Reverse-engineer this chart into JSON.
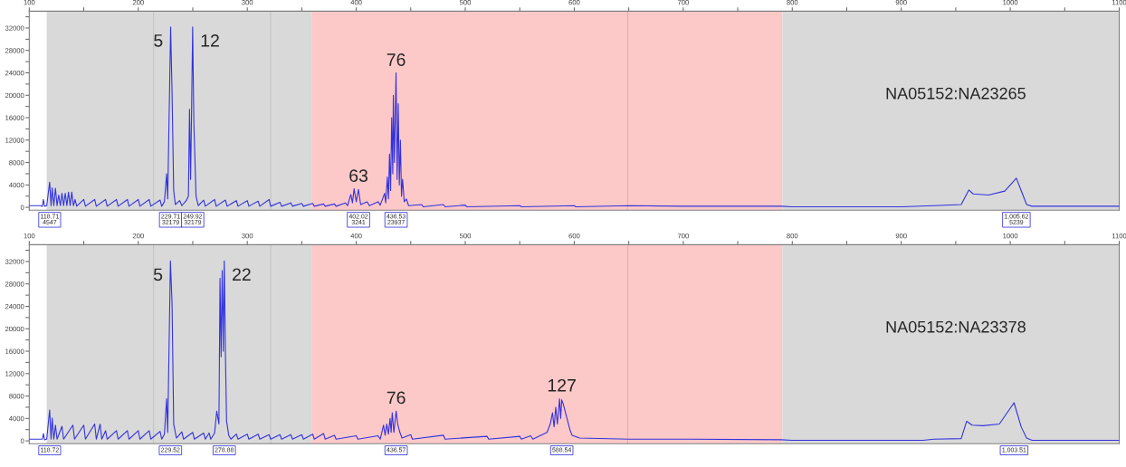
{
  "chart_data": [
    {
      "type": "line",
      "xlim": [
        100,
        1100
      ],
      "ylim": [
        -500,
        35000
      ],
      "xticks": [
        100,
        {
          "value": 150,
          "label": null
        },
        200,
        {
          "value": 250,
          "label": null
        },
        300,
        {
          "value": 350,
          "label": null
        },
        400,
        {
          "value": 450,
          "label": null
        },
        500,
        {
          "value": 550,
          "label": null
        },
        600,
        {
          "value": 650,
          "label": null
        },
        700,
        {
          "value": 750,
          "label": null
        },
        800,
        {
          "value": 850,
          "label": null
        },
        900,
        {
          "value": 950,
          "label": null
        },
        1000,
        {
          "value": 1050,
          "label": null
        },
        1100
      ],
      "yticks": [
        0,
        {
          "value": 2000,
          "label": null
        },
        4000,
        {
          "value": 6000,
          "label": null
        },
        8000,
        {
          "value": 10000,
          "label": null
        },
        12000,
        {
          "value": 14000,
          "label": null
        },
        16000,
        {
          "value": 18000,
          "label": null
        },
        20000,
        {
          "value": 22000,
          "label": null
        },
        24000,
        {
          "value": 26000,
          "label": null
        },
        28000,
        {
          "value": 30000,
          "label": null
        },
        32000,
        {
          "value": 34000,
          "label": null
        }
      ],
      "grid": false,
      "bands": [
        {
          "axis": "x",
          "from": 116,
          "to": 359,
          "color": "#d9d9d9"
        },
        {
          "axis": "x",
          "from": 359,
          "to": 791,
          "color": "#fdc8c8"
        },
        {
          "axis": "x",
          "from": 791,
          "to": 1100,
          "color": "#d9d9d9"
        }
      ],
      "ref_lines": [
        {
          "axis": "x",
          "value": 214,
          "color": "#c4c4c4"
        },
        {
          "axis": "x",
          "value": 321.5,
          "color": "#c4c4c4"
        },
        {
          "axis": "x",
          "value": 649,
          "color": "#f4a8a8"
        }
      ],
      "series": [
        {
          "color": "#3333dd",
          "x": [
            100,
            110,
            112,
            113,
            114,
            116,
            118.7,
            120,
            121,
            122.5,
            124,
            125.5,
            127,
            128.5,
            130,
            131.5,
            133,
            134.5,
            136,
            137.5,
            139,
            140.5,
            142,
            143.5,
            150,
            151.5,
            160,
            161.5,
            170,
            171.5,
            180,
            181.5,
            190,
            191.5,
            200,
            201.5,
            210,
            211.5,
            220,
            221.5,
            224,
            226,
            227,
            229.7,
            231,
            232.5,
            234,
            238,
            240,
            244,
            246,
            247,
            248,
            249,
            249.9,
            251,
            253,
            255,
            260,
            261.5,
            270,
            271.5,
            280,
            281.5,
            290,
            291.5,
            300,
            301.5,
            310,
            311.5,
            320,
            321.5,
            330,
            331.5,
            340,
            341.5,
            350,
            351.5,
            360,
            361.5,
            370,
            371.5,
            380,
            381.5,
            390,
            392,
            395,
            396.5,
            398,
            400,
            402,
            404,
            410,
            412,
            420,
            422,
            426,
            427,
            428.5,
            429.5,
            430.5,
            431.5,
            432.5,
            433.5,
            434,
            435,
            436.5,
            437.5,
            438.5,
            439.5,
            440.5,
            441.5,
            442.5,
            444,
            446,
            448,
            460,
            461.5,
            480,
            481.5,
            500,
            501.5,
            550,
            551.5,
            600,
            601.5,
            650,
            700,
            790,
            800,
            900,
            930,
            955,
            962,
            966,
            980,
            995,
            1005.6,
            1010,
            1015,
            1020,
            1100
          ],
          "values": [
            300,
            300,
            200,
            1400,
            200,
            300,
            4500,
            300,
            3500,
            300,
            3400,
            300,
            2200,
            300,
            2500,
            300,
            2500,
            300,
            2700,
            300,
            2700,
            300,
            1400,
            200,
            1400,
            200,
            1400,
            200,
            1400,
            200,
            1400,
            200,
            1400,
            200,
            1400,
            200,
            1400,
            200,
            1300,
            200,
            1000,
            6000,
            1500,
            32200,
            20500,
            3000,
            500,
            1200,
            300,
            1200,
            2000,
            17500,
            5000,
            18500,
            32200,
            15000,
            2000,
            300,
            1300,
            200,
            1400,
            200,
            1300,
            200,
            1200,
            200,
            1200,
            200,
            1100,
            200,
            1400,
            200,
            900,
            200,
            800,
            200,
            700,
            200,
            700,
            200,
            600,
            200,
            600,
            200,
            800,
            300,
            2300,
            800,
            3300,
            1000,
            3200,
            500,
            1000,
            300,
            1000,
            400,
            2500,
            800,
            5400,
            1500,
            9500,
            3000,
            16000,
            6000,
            20000,
            8000,
            24000,
            5000,
            18500,
            4000,
            12000,
            2000,
            5000,
            1000,
            1500,
            300,
            500,
            100,
            500,
            100,
            400,
            100,
            300,
            100,
            300,
            100,
            300,
            200,
            200,
            100,
            100,
            300,
            500,
            3100,
            2400,
            2200,
            2900,
            5200,
            3000,
            500,
            200,
            200
          ]
        }
      ],
      "annotations": [
        {
          "text": "5",
          "x": 229.71,
          "y": 32179
        },
        {
          "text": "12",
          "x": 249.92,
          "y": 32179
        },
        {
          "text": "63",
          "x": 402.02,
          "y": 3241
        },
        {
          "text": "76",
          "x": 436.53,
          "y": 23937
        },
        "NA05152:NA23265",
        {
          "text": "118.71\n4547",
          "x": 118.71
        },
        {
          "text": "229.71\n32179",
          "x": 229.71
        },
        {
          "text": "249.92\n32179",
          "x": 249.92
        },
        {
          "text": "402.02\n3241",
          "x": 402.02
        },
        {
          "text": "436.53\n23937",
          "x": 436.53
        },
        {
          "text": "1,005.62\n5239",
          "x": 1005.62
        }
      ]
    },
    {
      "type": "line",
      "xlim": [
        100,
        1100
      ],
      "ylim": [
        -500,
        35000
      ],
      "xticks": [
        100,
        {
          "value": 150,
          "label": null
        },
        200,
        {
          "value": 250,
          "label": null
        },
        300,
        {
          "value": 350,
          "label": null
        },
        400,
        {
          "value": 450,
          "label": null
        },
        500,
        {
          "value": 550,
          "label": null
        },
        600,
        {
          "value": 650,
          "label": null
        },
        700,
        {
          "value": 750,
          "label": null
        },
        800,
        {
          "value": 850,
          "label": null
        },
        900,
        {
          "value": 950,
          "label": null
        },
        1000,
        {
          "value": 1050,
          "label": null
        },
        1100
      ],
      "yticks": [
        0,
        {
          "value": 2000,
          "label": null
        },
        4000,
        {
          "value": 6000,
          "label": null
        },
        8000,
        {
          "value": 10000,
          "label": null
        },
        12000,
        {
          "value": 14000,
          "label": null
        },
        16000,
        {
          "value": 18000,
          "label": null
        },
        20000,
        {
          "value": 22000,
          "label": null
        },
        24000,
        {
          "value": 26000,
          "label": null
        },
        28000,
        {
          "value": 30000,
          "label": null
        },
        32000,
        {
          "value": 34000,
          "label": null
        }
      ],
      "grid": false,
      "bands": [
        {
          "axis": "x",
          "from": 116,
          "to": 359,
          "color": "#d9d9d9"
        },
        {
          "axis": "x",
          "from": 359,
          "to": 791,
          "color": "#fdc8c8"
        },
        {
          "axis": "x",
          "from": 791,
          "to": 1100,
          "color": "#d9d9d9"
        }
      ],
      "ref_lines": [
        {
          "axis": "x",
          "value": 214,
          "color": "#c4c4c4"
        },
        {
          "axis": "x",
          "value": 321.5,
          "color": "#c4c4c4"
        },
        {
          "axis": "x",
          "value": 649,
          "color": "#f4a8a8"
        }
      ],
      "series": [
        {
          "color": "#3333dd",
          "x": [
            100,
            112,
            113,
            114,
            116,
            118.7,
            120,
            121,
            122.5,
            124,
            125.5,
            130,
            131.5,
            140,
            141.5,
            150,
            151.5,
            160,
            161.5,
            165,
            166.5,
            170,
            171.5,
            180,
            181.5,
            190,
            191.5,
            200,
            201.5,
            210,
            211.5,
            220,
            221.5,
            224,
            226,
            227,
            229.5,
            231,
            232.5,
            235,
            240,
            241.5,
            250,
            251.5,
            260,
            261.5,
            265,
            266.5,
            270,
            272,
            274,
            275,
            276,
            277,
            278,
            278.9,
            280,
            281,
            283,
            285,
            290,
            291.5,
            300,
            301.5,
            310,
            311.5,
            320,
            321.5,
            330,
            331.5,
            340,
            341.5,
            350,
            351.5,
            360,
            361.5,
            370,
            371.5,
            380,
            381.5,
            400,
            401.5,
            420,
            422,
            425,
            426.5,
            428,
            429.5,
            431,
            432,
            433,
            434.5,
            436.6,
            438,
            440,
            442,
            450,
            451.5,
            480,
            481.5,
            520,
            521.5,
            550,
            551.5,
            560,
            562,
            575,
            578,
            580,
            581.5,
            583,
            584.5,
            586.5,
            587.5,
            588.5,
            590,
            592,
            594,
            596,
            598,
            605,
            650,
            700,
            790,
            800,
            920,
            930,
            955,
            960,
            965,
            975,
            990,
            1003.5,
            1010,
            1015,
            1020,
            1100
          ],
          "values": [
            300,
            300,
            1300,
            200,
            300,
            5500,
            300,
            4100,
            300,
            2800,
            300,
            2600,
            300,
            2800,
            300,
            2800,
            300,
            3000,
            300,
            3000,
            300,
            1800,
            300,
            1800,
            300,
            1800,
            300,
            1800,
            300,
            1800,
            300,
            1700,
            300,
            1200,
            7500,
            1500,
            32100,
            24500,
            3000,
            500,
            1600,
            300,
            1500,
            300,
            1400,
            300,
            1400,
            300,
            1400,
            5300,
            3000,
            29000,
            15000,
            30400,
            16000,
            32100,
            15000,
            3500,
            1000,
            300,
            1200,
            300,
            1200,
            300,
            1200,
            300,
            1100,
            300,
            1100,
            300,
            1100,
            300,
            1100,
            300,
            1200,
            300,
            1300,
            300,
            1000,
            300,
            900,
            300,
            900,
            300,
            2800,
            1000,
            3000,
            1200,
            4000,
            1500,
            5000,
            1500,
            5300,
            3000,
            1500,
            500,
            1100,
            300,
            1000,
            300,
            800,
            300,
            800,
            300,
            900,
            300,
            1500,
            3000,
            5000,
            2500,
            6000,
            3000,
            7500,
            4000,
            7300,
            6500,
            5000,
            3500,
            2000,
            1000,
            500,
            300,
            300,
            200,
            100,
            100,
            300,
            400,
            3500,
            2800,
            2700,
            3000,
            6800,
            2500,
            500,
            100,
            100
          ]
        }
      ],
      "annotations": [
        {
          "text": "5",
          "x": 229.52,
          "y": 32100
        },
        {
          "text": "22",
          "x": 278.88,
          "y": 32100
        },
        {
          "text": "76",
          "x": 436.57,
          "y": 5300
        },
        {
          "text": "127",
          "x": 588.54,
          "y": 7500
        },
        "NA05152:NA23378",
        {
          "text": "118.72",
          "x": 118.72
        },
        {
          "text": "229.52",
          "x": 229.52
        },
        {
          "text": "278.88",
          "x": 278.88
        },
        {
          "text": "436.57",
          "x": 436.57
        },
        {
          "text": "588.54",
          "x": 588.54
        },
        {
          "text": "1,003.51",
          "x": 1003.51
        }
      ]
    }
  ]
}
